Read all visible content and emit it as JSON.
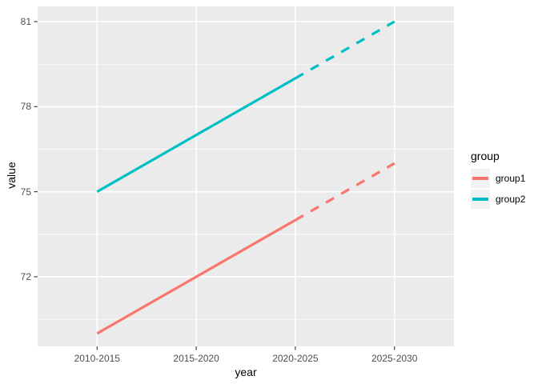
{
  "chart_data": {
    "type": "line",
    "title": "",
    "xlabel": "year",
    "ylabel": "value",
    "categories": [
      "2010-2015",
      "2015-2020",
      "2020-2025",
      "2025-2030"
    ],
    "series": [
      {
        "name": "group1",
        "color": "#F8766D",
        "values": [
          70,
          72,
          74,
          76
        ],
        "solid_through_index": 2,
        "dashed_from_index": 2
      },
      {
        "name": "group2",
        "color": "#00BFC4",
        "values": [
          75,
          77,
          79,
          81
        ],
        "solid_through_index": 2,
        "dashed_from_index": 2
      }
    ],
    "y_major_ticks": [
      72,
      75,
      78,
      81
    ],
    "y_minor_ticks": [
      70.5,
      73.5,
      76.5,
      79.5
    ],
    "ylim": [
      69.45,
      81.55
    ],
    "grid": "on",
    "legend": {
      "title": "group",
      "position": "right"
    },
    "colors": {
      "panel_bg": "#EBEBEB",
      "grid": "#FFFFFF",
      "tick_mark": "#333333",
      "tick_label": "#4D4D4D",
      "legend_key_bg": "#F2F2F2"
    }
  }
}
